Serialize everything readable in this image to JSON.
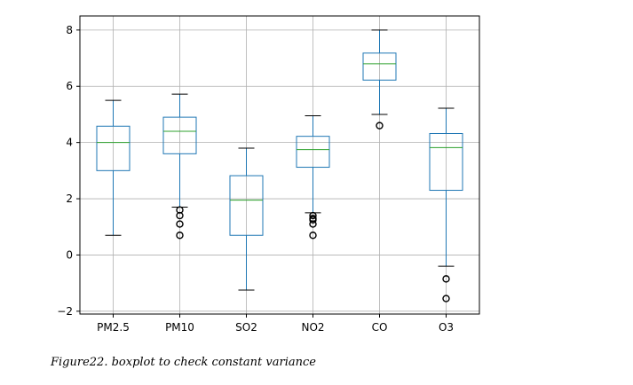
{
  "caption": "Figure22. boxplot to check constant variance",
  "chart_data": {
    "type": "boxplot",
    "title": "",
    "xlabel": "",
    "ylabel": "",
    "ylim": [
      -2.1,
      8.5
    ],
    "yticks": [
      -2,
      0,
      2,
      4,
      6,
      8
    ],
    "ytick_labels": [
      "−2",
      "0",
      "2",
      "4",
      "6",
      "8"
    ],
    "grid": true,
    "colors": {
      "box": "#1f77b4",
      "median": "#2ca02c",
      "whisker": "#000000",
      "outlier": "#000000",
      "grid": "#b0b0b0"
    },
    "categories": [
      "PM2.5",
      "PM10",
      "SO2",
      "NO2",
      "CO",
      "O3"
    ],
    "boxes": [
      {
        "name": "PM2.5",
        "whislo": 0.7,
        "q1": 3.0,
        "med": 4.0,
        "q3": 4.58,
        "whishi": 5.5,
        "fliers": []
      },
      {
        "name": "PM10",
        "whislo": 1.7,
        "q1": 3.6,
        "med": 4.4,
        "q3": 4.9,
        "whishi": 5.72,
        "fliers": [
          1.6,
          1.4,
          1.1,
          0.7
        ]
      },
      {
        "name": "SO2",
        "whislo": -1.25,
        "q1": 0.7,
        "med": 1.95,
        "q3": 2.82,
        "whishi": 3.8,
        "fliers": []
      },
      {
        "name": "NO2",
        "whislo": 1.5,
        "q1": 3.12,
        "med": 3.75,
        "q3": 4.22,
        "whishi": 4.95,
        "fliers": [
          1.4,
          1.3,
          1.25,
          1.1,
          0.7
        ]
      },
      {
        "name": "CO",
        "whislo": 5.0,
        "q1": 6.22,
        "med": 6.8,
        "q3": 7.18,
        "whishi": 8.0,
        "fliers": [
          4.6
        ]
      },
      {
        "name": "O3",
        "whislo": -0.4,
        "q1": 2.3,
        "med": 3.82,
        "q3": 4.32,
        "whishi": 5.22,
        "fliers": [
          -0.85,
          -1.55
        ]
      }
    ]
  }
}
